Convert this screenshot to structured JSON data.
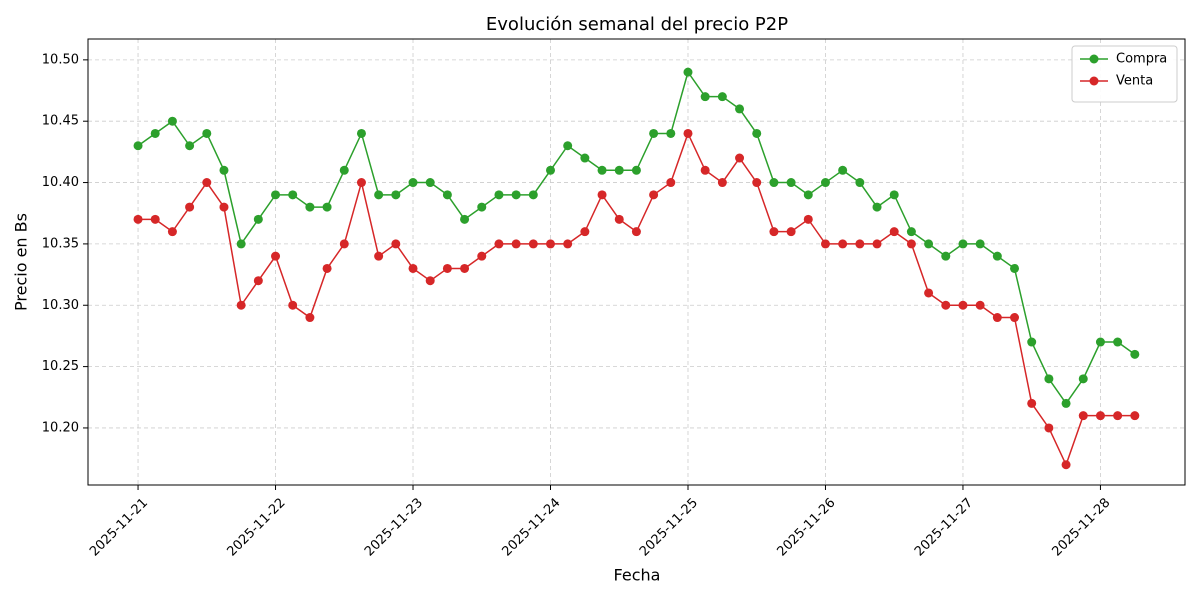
{
  "chart_data": {
    "type": "line",
    "title": "Evolución semanal del precio P2P",
    "x_label": "Fecha",
    "y_label": "Precio en Bs",
    "x": [
      0,
      0.125,
      0.25,
      0.375,
      0.5,
      0.625,
      0.75,
      0.875,
      1,
      1.125,
      1.25,
      1.375,
      1.5,
      1.625,
      1.75,
      1.875,
      2,
      2.125,
      2.25,
      2.375,
      2.5,
      2.625,
      2.75,
      2.875,
      3,
      3.125,
      3.25,
      3.375,
      3.5,
      3.625,
      3.75,
      3.875,
      4,
      4.125,
      4.25,
      4.375,
      4.5,
      4.625,
      4.75,
      4.875,
      5,
      5.125,
      5.25,
      5.375,
      5.5,
      5.625,
      5.75,
      5.875,
      6,
      6.125,
      6.25,
      6.375,
      6.5,
      6.625,
      6.75,
      6.875,
      7,
      7.125,
      7.25
    ],
    "series": [
      {
        "name": "Compra",
        "color": "#2ca02c",
        "values": [
          10.43,
          10.44,
          10.45,
          10.43,
          10.44,
          10.41,
          10.35,
          10.37,
          10.39,
          10.39,
          10.38,
          10.38,
          10.41,
          10.44,
          10.39,
          10.39,
          10.4,
          10.4,
          10.39,
          10.37,
          10.38,
          10.39,
          10.39,
          10.39,
          10.41,
          10.43,
          10.42,
          10.41,
          10.41,
          10.41,
          10.44,
          10.44,
          10.49,
          10.47,
          10.47,
          10.46,
          10.44,
          10.4,
          10.4,
          10.39,
          10.4,
          10.41,
          10.4,
          10.38,
          10.39,
          10.36,
          10.35,
          10.34,
          10.35,
          10.35,
          10.34,
          10.33,
          10.27,
          10.24,
          10.22,
          10.24,
          10.27,
          10.27,
          10.26
        ]
      },
      {
        "name": "Venta",
        "color": "#d62728",
        "values": [
          10.37,
          10.37,
          10.36,
          10.38,
          10.4,
          10.38,
          10.3,
          10.32,
          10.34,
          10.3,
          10.29,
          10.33,
          10.35,
          10.4,
          10.34,
          10.35,
          10.33,
          10.32,
          10.33,
          10.33,
          10.34,
          10.35,
          10.35,
          10.35,
          10.35,
          10.35,
          10.36,
          10.39,
          10.37,
          10.36,
          10.39,
          10.4,
          10.44,
          10.41,
          10.4,
          10.42,
          10.4,
          10.36,
          10.36,
          10.37,
          10.35,
          10.35,
          10.35,
          10.35,
          10.36,
          10.35,
          10.31,
          10.3,
          10.3,
          10.3,
          10.29,
          10.29,
          10.22,
          10.2,
          10.17,
          10.21,
          10.21,
          10.21,
          10.21
        ]
      }
    ],
    "xlim": [
      -0.364,
      7.615
    ],
    "xticks": [
      {
        "value": 0,
        "label": "2025-11-21"
      },
      {
        "value": 1,
        "label": "2025-11-22"
      },
      {
        "value": 2,
        "label": "2025-11-23"
      },
      {
        "value": 3,
        "label": "2025-11-24"
      },
      {
        "value": 4,
        "label": "2025-11-25"
      },
      {
        "value": 5,
        "label": "2025-11-26"
      },
      {
        "value": 6,
        "label": "2025-11-27"
      },
      {
        "value": 7,
        "label": "2025-11-28"
      }
    ],
    "ylim": [
      10.1535,
      10.517
    ],
    "yticks": [
      {
        "value": 10.2,
        "label": "10.20"
      },
      10.25,
      {
        "value": 10.3,
        "label": "10.30"
      },
      10.35,
      {
        "value": 10.4,
        "label": "10.40"
      },
      10.45,
      {
        "value": 10.5,
        "label": "10.50"
      }
    ],
    "grid": true,
    "legend": "upper right"
  }
}
